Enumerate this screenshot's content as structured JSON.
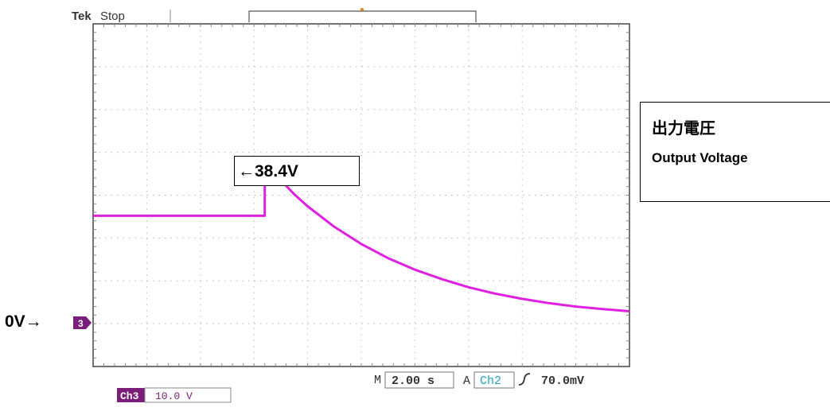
{
  "scope": {
    "brand": "Tek",
    "status": "Stop",
    "timebase_prefix": "M",
    "timebase": "2.00 s",
    "trigger_mode": "A",
    "trigger_source": "Ch2",
    "trigger_level": "70.0mV",
    "channel_label": "Ch3",
    "channel_scale": "10.0 V",
    "channel_marker": "3",
    "colors": {
      "trace": "#e020e0",
      "channel_badge": "#7a1e7a",
      "trigger_marker": "#e07a1e",
      "ch2_text": "#22a6b8",
      "grid_dots": "#b8b8b8",
      "frame": "#444444"
    }
  },
  "annotations": {
    "peak_label": "←38.4V",
    "title_jp": "出力電圧",
    "title_en": "Output Voltage",
    "zero_label": "0V→"
  },
  "chart_data": {
    "type": "line",
    "xlabel": "",
    "ylabel": "",
    "x_unit": "s",
    "y_unit": "V",
    "xlim": [
      0,
      20
    ],
    "ylim": [
      -10,
      70
    ],
    "grid": true,
    "series": [
      {
        "x": [
          0,
          6.2,
          6.4,
          6.4,
          6.6,
          7,
          7.5,
          8,
          9,
          10,
          11,
          12,
          13,
          14,
          15,
          16,
          17,
          18,
          19,
          20
        ],
        "values": [
          25.2,
          25.2,
          25.2,
          38.4,
          36.6,
          33.5,
          30.2,
          27.4,
          22.6,
          18.6,
          15.3,
          12.6,
          10.4,
          8.5,
          7.0,
          5.8,
          4.8,
          4.0,
          3.4,
          2.9
        ]
      }
    ]
  }
}
